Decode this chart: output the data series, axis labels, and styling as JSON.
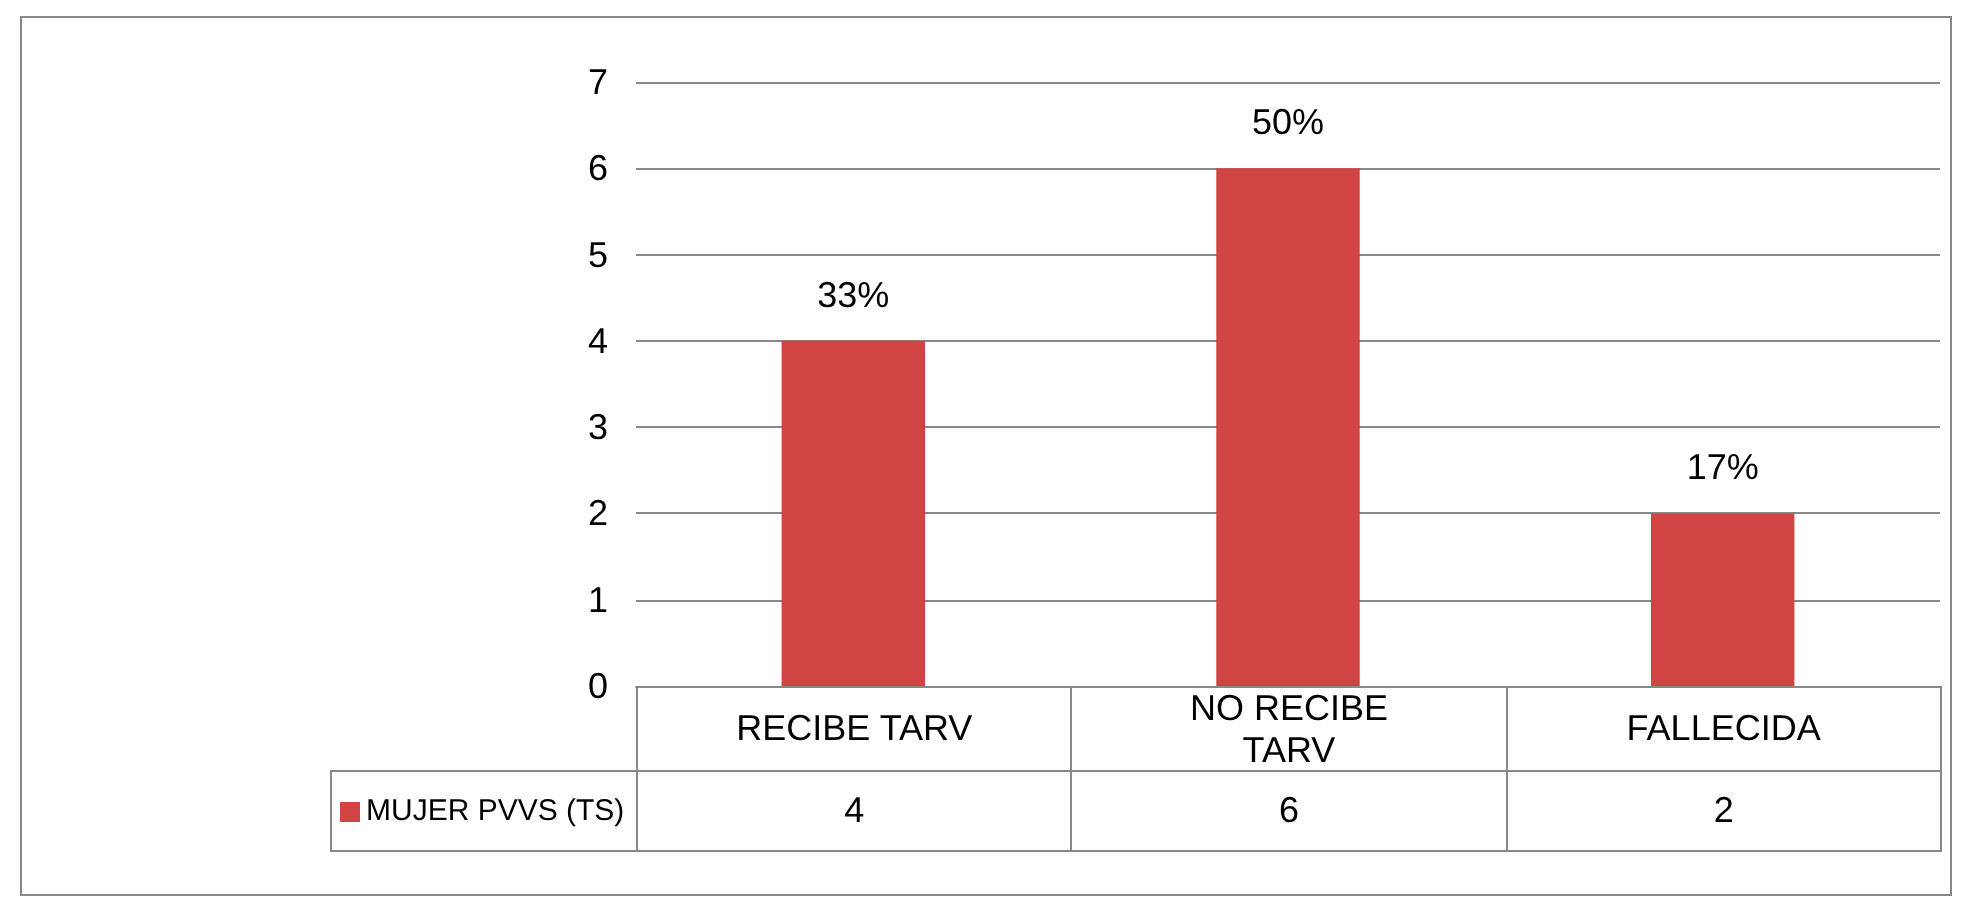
{
  "chart_data": {
    "type": "bar",
    "categories": [
      "RECIBE TARV",
      "NO RECIBE TARV",
      "FALLECIDA"
    ],
    "series": [
      {
        "name": "MUJER PVVS (TS)",
        "color": "#d04444",
        "values": [
          4,
          6,
          2
        ],
        "value_labels": [
          "4",
          "6",
          "2"
        ]
      }
    ],
    "annotations": [
      {
        "text": "33%",
        "x": "RECIBE TARV",
        "y": 4
      },
      {
        "text": "50%",
        "x": "NO RECIBE TARV",
        "y": 6
      },
      {
        "text": "17%",
        "x": "FALLECIDA",
        "y": 2
      }
    ],
    "ylim": [
      0,
      7
    ],
    "yticks": [
      0,
      1,
      2,
      3,
      4,
      5,
      6,
      7
    ],
    "grid": "y",
    "legend": "bottom left"
  }
}
